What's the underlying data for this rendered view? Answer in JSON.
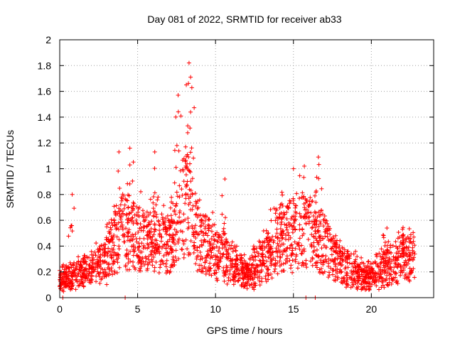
{
  "chart_data": {
    "type": "scatter",
    "title": "Day 081 of 2022, SRMTID for receiver ab33",
    "xlabel": "GPS time / hours",
    "ylabel": "SRMTID / TECUs",
    "xlim": [
      0,
      24
    ],
    "ylim": [
      0,
      2
    ],
    "x_ticks": [
      0,
      5,
      10,
      15,
      20
    ],
    "x_tick_labels": [
      "0",
      "5",
      "10",
      "15",
      "20"
    ],
    "y_ticks": [
      0,
      0.2,
      0.4,
      0.6,
      0.8,
      1,
      1.2,
      1.4,
      1.6,
      1.8,
      2
    ],
    "y_tick_labels": [
      "0",
      "0.2",
      "0.4",
      "0.6",
      "0.8",
      "1",
      "1.2",
      "1.4",
      "1.6",
      "1.8",
      "2"
    ],
    "grid": true,
    "marker": "+",
    "color": "#ff0000",
    "x_range_hours": [
      0.0,
      22.8
    ],
    "series": [
      {
        "name": "SRMTID",
        "envelope_note": "dense point cloud; typical level per hour",
        "hourly_median": [
          [
            0,
            0.14
          ],
          [
            1,
            0.16
          ],
          [
            2,
            0.22
          ],
          [
            3,
            0.3
          ],
          [
            4,
            0.55
          ],
          [
            5,
            0.45
          ],
          [
            6,
            0.42
          ],
          [
            7,
            0.4
          ],
          [
            8,
            0.75
          ],
          [
            9,
            0.45
          ],
          [
            10,
            0.35
          ],
          [
            11,
            0.28
          ],
          [
            12,
            0.16
          ],
          [
            13,
            0.28
          ],
          [
            14,
            0.45
          ],
          [
            15,
            0.5
          ],
          [
            16,
            0.5
          ],
          [
            17,
            0.4
          ],
          [
            18,
            0.25
          ],
          [
            19,
            0.2
          ],
          [
            20,
            0.15
          ],
          [
            21,
            0.25
          ],
          [
            22,
            0.3
          ]
        ],
        "peaks": [
          {
            "x": 0.8,
            "y": 0.8
          },
          {
            "x": 3.8,
            "y": 1.13
          },
          {
            "x": 4.5,
            "y": 1.16
          },
          {
            "x": 6.1,
            "y": 1.13
          },
          {
            "x": 7.6,
            "y": 1.57
          },
          {
            "x": 8.3,
            "y": 1.82
          },
          {
            "x": 8.4,
            "y": 1.71
          },
          {
            "x": 10.6,
            "y": 0.92
          },
          {
            "x": 15.0,
            "y": 1.0
          },
          {
            "x": 15.7,
            "y": 1.02
          },
          {
            "x": 16.6,
            "y": 1.09
          },
          {
            "x": 21.0,
            "y": 0.54
          },
          {
            "x": 22.0,
            "y": 0.53
          }
        ],
        "zero_points": [
          {
            "x": 0.2,
            "y": 0
          },
          {
            "x": 4.2,
            "y": 0
          },
          {
            "x": 15.8,
            "y": 0
          },
          {
            "x": 16.4,
            "y": 0
          }
        ]
      }
    ]
  }
}
